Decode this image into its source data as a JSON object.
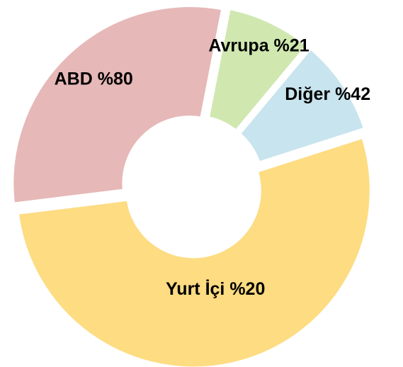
{
  "chart_data": {
    "type": "donut",
    "categories": [
      "Avrupa %21",
      "Diğer %42",
      "Yurt İçi %20",
      "ABD %80"
    ],
    "values": [
      8,
      9,
      53,
      30
    ],
    "colors": [
      "#d0e8b0",
      "#c8e4ee",
      "#fddc82",
      "#e6b8b7"
    ]
  }
}
